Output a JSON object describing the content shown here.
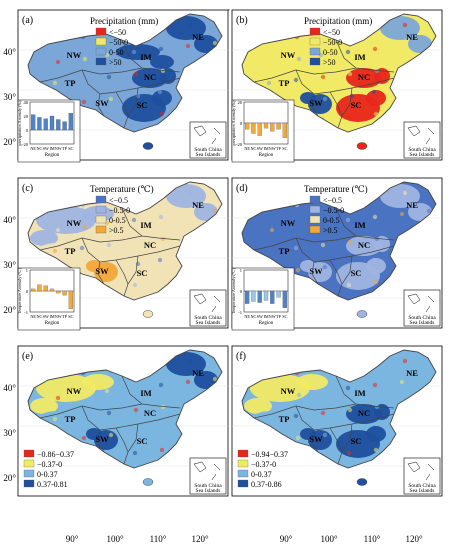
{
  "figure": {
    "top_mark": ",",
    "lat_labels": [
      "40°",
      "30°",
      "20°"
    ],
    "lon_labels": [
      "90°",
      "100°",
      "110°",
      "120°"
    ],
    "inset_caption": [
      "South China",
      "Sea Islands"
    ],
    "regions": [
      "NE",
      "IM",
      "NW",
      "NC",
      "TP",
      "SW",
      "SC"
    ],
    "bar_regions": [
      "NE",
      "NC",
      "SW",
      "IM",
      "NW",
      "TP",
      "SC"
    ],
    "bar_xlabel": "Region",
    "palettes": {
      "precip": [
        "#e8261b",
        "#f1ea66",
        "#7ba6d8",
        "#1f4f9e"
      ],
      "temp": [
        "#4a73c2",
        "#9fb4e0",
        "#f1e3b6",
        "#f2a63b"
      ],
      "cor": [
        "#e8261b",
        "#f1ea66",
        "#7bb6e0",
        "#1f4f9e"
      ]
    }
  },
  "panels": [
    {
      "letter": "(a)",
      "legend_title": "Precipitation (mm)",
      "legend": [
        "<−50",
        "−50-0",
        "0-50",
        ">50"
      ],
      "palette": "precip",
      "field": {
        "NE": 3,
        "IM": 3,
        "NW": 2,
        "NC": 3,
        "TP": 2,
        "SW": 2,
        "SC": 3,
        "base": 2
      },
      "inset": {
        "ylabel": "precipitation Anomaly (%)",
        "ticks": [
          "40",
          "20",
          "0",
          "-20"
        ],
        "ymin": -20,
        "ymax": 40,
        "values": [
          22,
          18,
          16,
          20,
          15,
          12,
          24
        ],
        "colors": [
          "#4f82c8",
          "#4f82c8",
          "#4f82c8",
          "#4f82c8",
          "#4f82c8",
          "#4f82c8",
          "#4f82c8"
        ]
      }
    },
    {
      "letter": "(b)",
      "legend_title": "Precipitation (mm)",
      "legend": [
        "<−50",
        "−50-0",
        "0-50",
        ">50"
      ],
      "palette": "precip",
      "field": {
        "NE": 2,
        "IM": 1,
        "NW": 1,
        "NC": 0,
        "TP": 1,
        "SW": 3,
        "SC": 0,
        "base": 1
      },
      "inset": {
        "ylabel": "precipitation Anomaly (%)",
        "ticks": [
          "20",
          "0",
          "-20"
        ],
        "ymin": -20,
        "ymax": 20,
        "values": [
          -6,
          -10,
          -12,
          -5,
          -8,
          -6,
          -14
        ],
        "colors": [
          "#f2a93b",
          "#f2a93b",
          "#f2a93b",
          "#f2a93b",
          "#f2a93b",
          "#f2a93b",
          "#f2a93b"
        ]
      }
    },
    {
      "letter": "(c)",
      "legend_title": "Temperature (℃)",
      "legend": [
        "<−0.5",
        "−0.5-0",
        "0-0.5",
        ">0.5"
      ],
      "palette": "temp",
      "field": {
        "NE": 1,
        "IM": 2,
        "NW": 1,
        "NC": 2,
        "TP": 2,
        "SW": 3,
        "SC": 2,
        "base": 2
      },
      "inset": {
        "ylabel": "Temperature Anomaly (℃)",
        "ticks": [
          "1",
          "0",
          "-1"
        ],
        "ymin": -1,
        "ymax": 1,
        "values": [
          0.1,
          0.3,
          0.25,
          0.1,
          -0.1,
          -0.2,
          -0.85
        ],
        "colors": [
          "#f2a93b",
          "#f2a93b",
          "#f2a93b",
          "#f2a93b",
          "#f2a93b",
          "#f2a93b",
          "#f2a93b"
        ]
      }
    },
    {
      "letter": "(d)",
      "legend_title": "Temperature (℃)",
      "legend": [
        "<−0.5",
        "−0.5-0",
        "0-0.5",
        ">0.5"
      ],
      "palette": "temp",
      "field": {
        "NE": 1,
        "IM": 0,
        "NW": 0,
        "NC": 1,
        "TP": 0,
        "SW": 1,
        "SC": 1,
        "base": 0
      },
      "inset": {
        "ylabel": "Temperature Anomaly (℃)",
        "ticks": [
          "1",
          "0",
          "-1"
        ],
        "ymin": -1,
        "ymax": 1,
        "values": [
          -0.6,
          -0.5,
          -0.55,
          -0.45,
          -0.6,
          -0.3,
          -0.8
        ],
        "colors": [
          "#4f82c8",
          "#9dc3e6",
          "#4f82c8",
          "#9dc3e6",
          "#4f82c8",
          "#9dc3e6",
          "#4f82c8"
        ]
      }
    },
    {
      "letter": "(e)",
      "legend_title": "",
      "legend": [
        "−0.86−0.37",
        "−0.37-0",
        "0-0.37",
        "0.37-0.81"
      ],
      "palette": "cor",
      "field": {
        "NE": 3,
        "IM": 2,
        "NW": 1,
        "NC": 2,
        "TP": 2,
        "SW": 3,
        "SC": 2,
        "base": 2
      },
      "inset": null
    },
    {
      "letter": "(f)",
      "legend_title": "",
      "legend": [
        "−0.94−0.37",
        "−0.37-0",
        "0-0.37",
        "0.37-0.86"
      ],
      "palette": "cor",
      "field": {
        "NE": 2,
        "IM": 2,
        "NW": 1,
        "NC": 3,
        "TP": 2,
        "SW": 3,
        "SC": 3,
        "base": 2
      },
      "inset": null
    }
  ]
}
